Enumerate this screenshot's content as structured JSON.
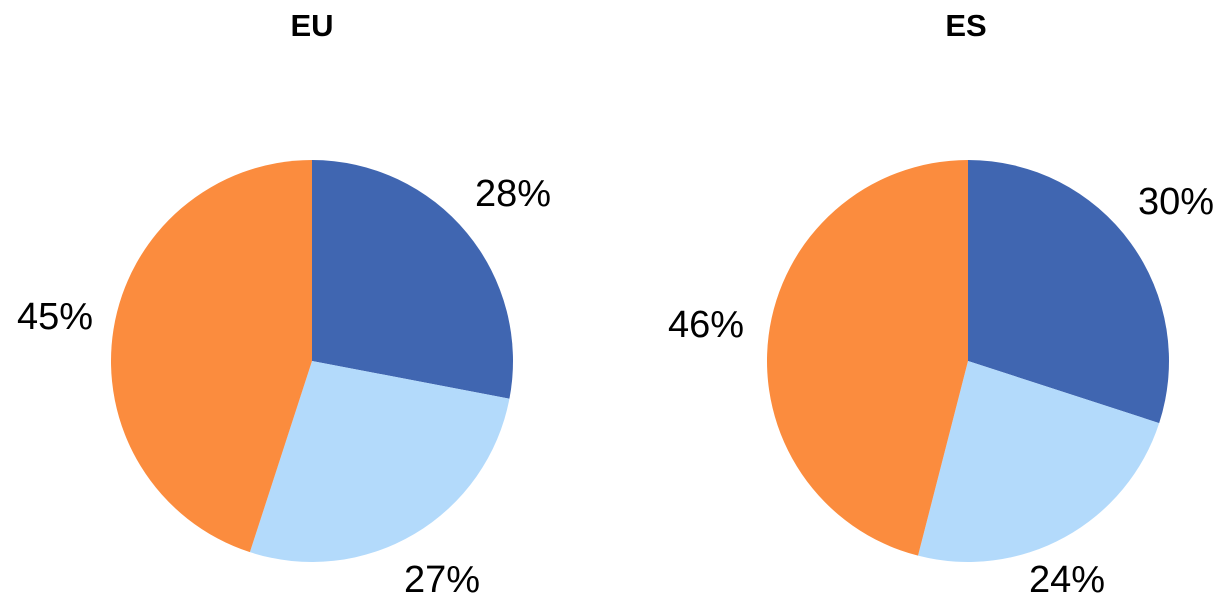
{
  "chart_data": [
    {
      "type": "pie",
      "title": "EU",
      "values": [
        28,
        27,
        45
      ],
      "labels": [
        "28%",
        "27%",
        "45%"
      ],
      "colors": [
        "#4066B1",
        "#B3DAFB",
        "#FB8C3E"
      ],
      "start": "12 o'clock",
      "direction": "clockwise"
    },
    {
      "type": "pie",
      "title": "ES",
      "values": [
        30,
        24,
        46
      ],
      "labels": [
        "30%",
        "24%",
        "46%"
      ],
      "colors": [
        "#4066B1",
        "#B3DAFB",
        "#FB8C3E"
      ],
      "start": "12 o'clock",
      "direction": "clockwise"
    }
  ]
}
